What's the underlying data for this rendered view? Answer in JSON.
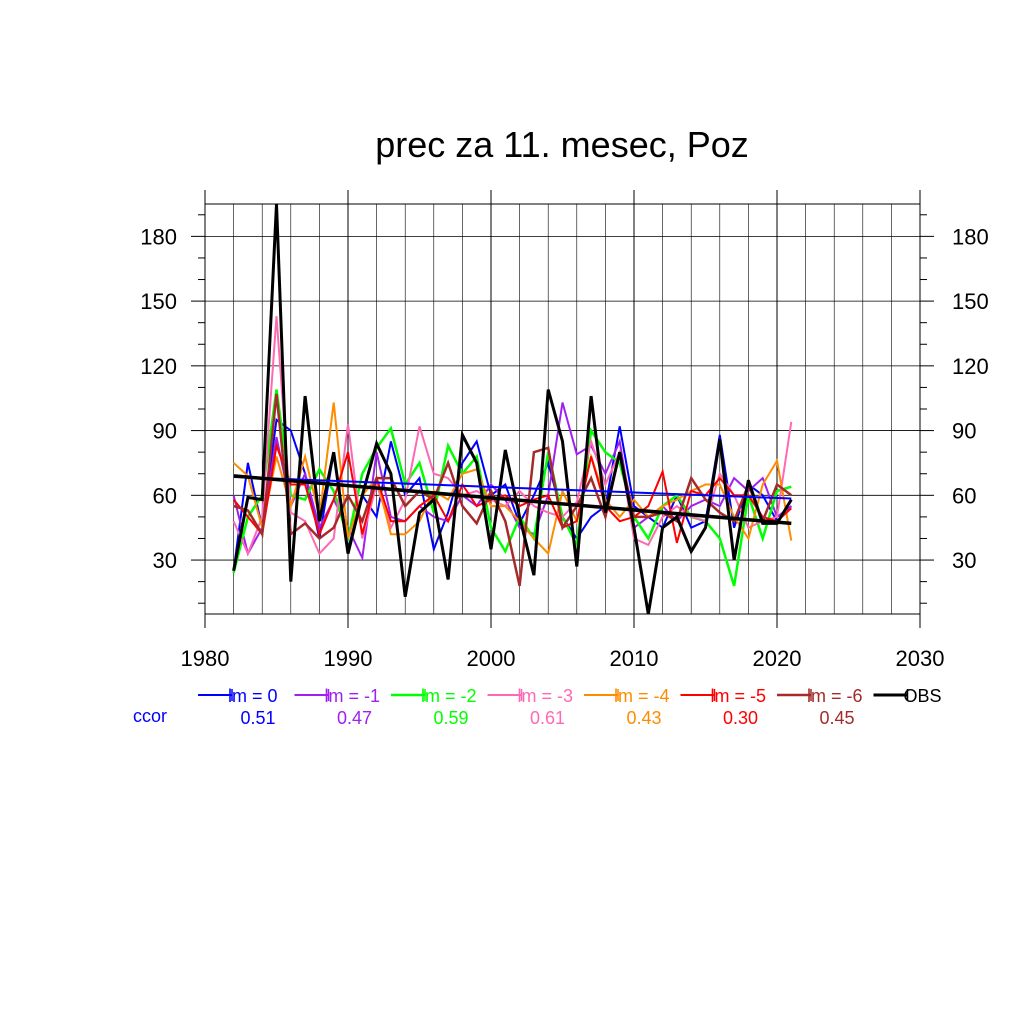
{
  "chart_data": {
    "type": "line",
    "title": "prec za 11. mesec, Poz",
    "xlim": [
      1980,
      2030
    ],
    "ylim": [
      5,
      195
    ],
    "x_ticks": [
      1980,
      1990,
      2000,
      2010,
      2020,
      2030
    ],
    "y_ticks": [
      30,
      60,
      90,
      120,
      150,
      180
    ],
    "grid": true,
    "legend_position": "bottom",
    "ccor_label": "ccor",
    "x": [
      1982,
      1983,
      1984,
      1985,
      1986,
      1987,
      1988,
      1989,
      1990,
      1991,
      1992,
      1993,
      1994,
      1995,
      1996,
      1997,
      1998,
      1999,
      2000,
      2001,
      2002,
      2003,
      2004,
      2005,
      2006,
      2007,
      2008,
      2009,
      2010,
      2011,
      2012,
      2013,
      2014,
      2015,
      2016,
      2017,
      2018,
      2019,
      2020,
      2021
    ],
    "series": [
      {
        "name": "lm = 0",
        "color": "#0000ff",
        "width": 2,
        "ccor": "0.51",
        "values": [
          25,
          75,
          45,
          95,
          90,
          70,
          40,
          80,
          35,
          60,
          50,
          85,
          60,
          68,
          35,
          52,
          75,
          85,
          60,
          65,
          47,
          60,
          75,
          50,
          40,
          50,
          55,
          92,
          55,
          50,
          45,
          60,
          45,
          48,
          88,
          45,
          65,
          60,
          48,
          55
        ],
        "trend": [
          68.5,
          58.5
        ]
      },
      {
        "name": "lm = -1",
        "color": "#a020f0",
        "width": 2,
        "ccor": "0.47",
        "values": [
          60,
          33,
          45,
          87,
          55,
          70,
          45,
          58,
          45,
          31,
          80,
          50,
          48,
          55,
          50,
          48,
          60,
          55,
          65,
          58,
          45,
          42,
          60,
          103,
          79,
          83,
          70,
          85,
          45,
          50,
          55,
          48,
          55,
          58,
          55,
          68,
          62,
          68,
          50,
          55
        ],
        "trend": null
      },
      {
        "name": "lm = -2",
        "color": "#00ff00",
        "width": 2.5,
        "ccor": "0.59",
        "values": [
          24,
          50,
          60,
          109,
          60,
          58,
          72,
          62,
          40,
          70,
          82,
          91,
          65,
          75,
          52,
          83,
          70,
          78,
          45,
          34,
          50,
          40,
          80,
          50,
          37,
          90,
          80,
          75,
          50,
          40,
          55,
          60,
          50,
          48,
          40,
          18,
          60,
          40,
          62,
          64
        ],
        "trend": null
      },
      {
        "name": "lm = -3",
        "color": "#ff69b4",
        "width": 2,
        "ccor": "0.61",
        "values": [
          48,
          33,
          50,
          143,
          52,
          48,
          33,
          40,
          93,
          40,
          65,
          45,
          58,
          92,
          70,
          68,
          60,
          62,
          58,
          55,
          62,
          55,
          52,
          50,
          57,
          85,
          65,
          80,
          40,
          37,
          50,
          55,
          50,
          48,
          70,
          60,
          45,
          48,
          50,
          94
        ],
        "trend": null
      },
      {
        "name": "lm = -4",
        "color": "#ff8c00",
        "width": 2,
        "ccor": "0.43",
        "values": [
          75,
          69,
          45,
          78,
          55,
          78,
          50,
          103,
          40,
          60,
          68,
          42,
          42,
          48,
          62,
          58,
          70,
          72,
          55,
          55,
          48,
          40,
          33,
          62,
          48,
          78,
          58,
          50,
          58,
          50,
          55,
          58,
          62,
          65,
          65,
          50,
          40,
          65,
          76,
          39
        ],
        "trend": null
      },
      {
        "name": "lm = -5",
        "color": "#ff0000",
        "width": 2,
        "ccor": "0.30",
        "values": [
          58,
          50,
          42,
          83,
          65,
          65,
          42,
          58,
          80,
          42,
          68,
          48,
          48,
          55,
          60,
          48,
          65,
          55,
          58,
          60,
          55,
          58,
          60,
          45,
          48,
          78,
          55,
          48,
          50,
          55,
          71,
          38,
          62,
          60,
          68,
          60,
          60,
          50,
          48,
          54
        ],
        "trend": null
      },
      {
        "name": "lm = -6",
        "color": "#a52a2a",
        "width": 2.5,
        "ccor": "0.45",
        "values": [
          55,
          53,
          42,
          107,
          42,
          47,
          40,
          45,
          60,
          48,
          68,
          68,
          55,
          62,
          58,
          75,
          55,
          47,
          62,
          48,
          18,
          80,
          82,
          45,
          55,
          68,
          50,
          80,
          50,
          50,
          52,
          48,
          68,
          58,
          52,
          48,
          65,
          48,
          65,
          60
        ],
        "trend": null
      },
      {
        "name": "OBS",
        "color": "#000000",
        "width": 3,
        "ccor": "",
        "values": [
          25,
          59,
          58,
          195,
          20,
          106,
          48,
          80,
          33,
          60,
          84,
          70,
          13,
          52,
          58,
          21,
          88,
          75,
          35,
          81,
          50,
          23,
          109,
          85,
          27,
          106,
          52,
          80,
          45,
          5,
          45,
          50,
          34,
          45,
          86,
          30,
          67,
          47,
          47,
          58
        ],
        "trend": [
          69,
          47
        ]
      }
    ]
  }
}
